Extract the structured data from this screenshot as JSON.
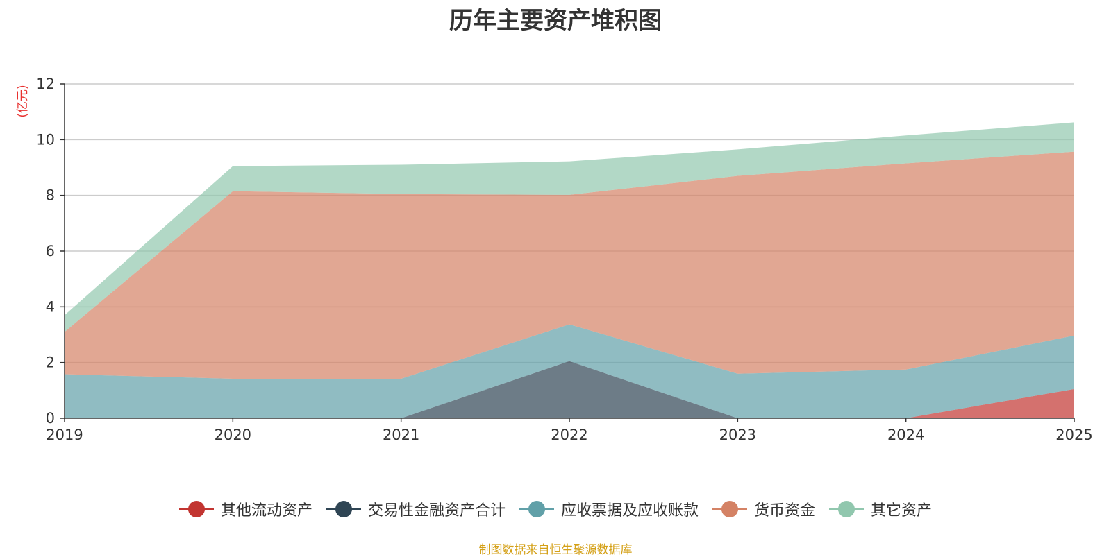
{
  "chart_data": {
    "type": "area",
    "stacked": true,
    "title": "历年主要资产堆积图",
    "ylabel": "(亿元)",
    "xlabel": "",
    "categories": [
      "2019",
      "2020",
      "2021",
      "2022",
      "2023",
      "2024",
      "2025"
    ],
    "ylim": [
      0,
      12
    ],
    "yticks": [
      0,
      2,
      4,
      6,
      8,
      10,
      12
    ],
    "grid": true,
    "legend_position": "bottom",
    "series": [
      {
        "name": "其他流动资产",
        "color": "#c23531",
        "values": [
          0,
          0,
          0,
          0,
          0,
          0,
          1.05
        ]
      },
      {
        "name": "交易性金融资产合计",
        "color": "#2f4554",
        "values": [
          0,
          0,
          0,
          2.05,
          0,
          0,
          0
        ]
      },
      {
        "name": "应收票据及应收账款",
        "color": "#61a0a8",
        "values": [
          1.58,
          1.42,
          1.42,
          1.32,
          1.6,
          1.75,
          1.92
        ]
      },
      {
        "name": "货币资金",
        "color": "#d48265",
        "values": [
          1.52,
          6.73,
          6.63,
          4.65,
          7.1,
          7.4,
          6.6
        ]
      },
      {
        "name": "其它资产",
        "color": "#91c7ae",
        "values": [
          0.6,
          0.9,
          1.05,
          1.2,
          0.95,
          1.0,
          1.05
        ]
      }
    ]
  },
  "source_note": "制图数据来自恒生聚源数据库"
}
